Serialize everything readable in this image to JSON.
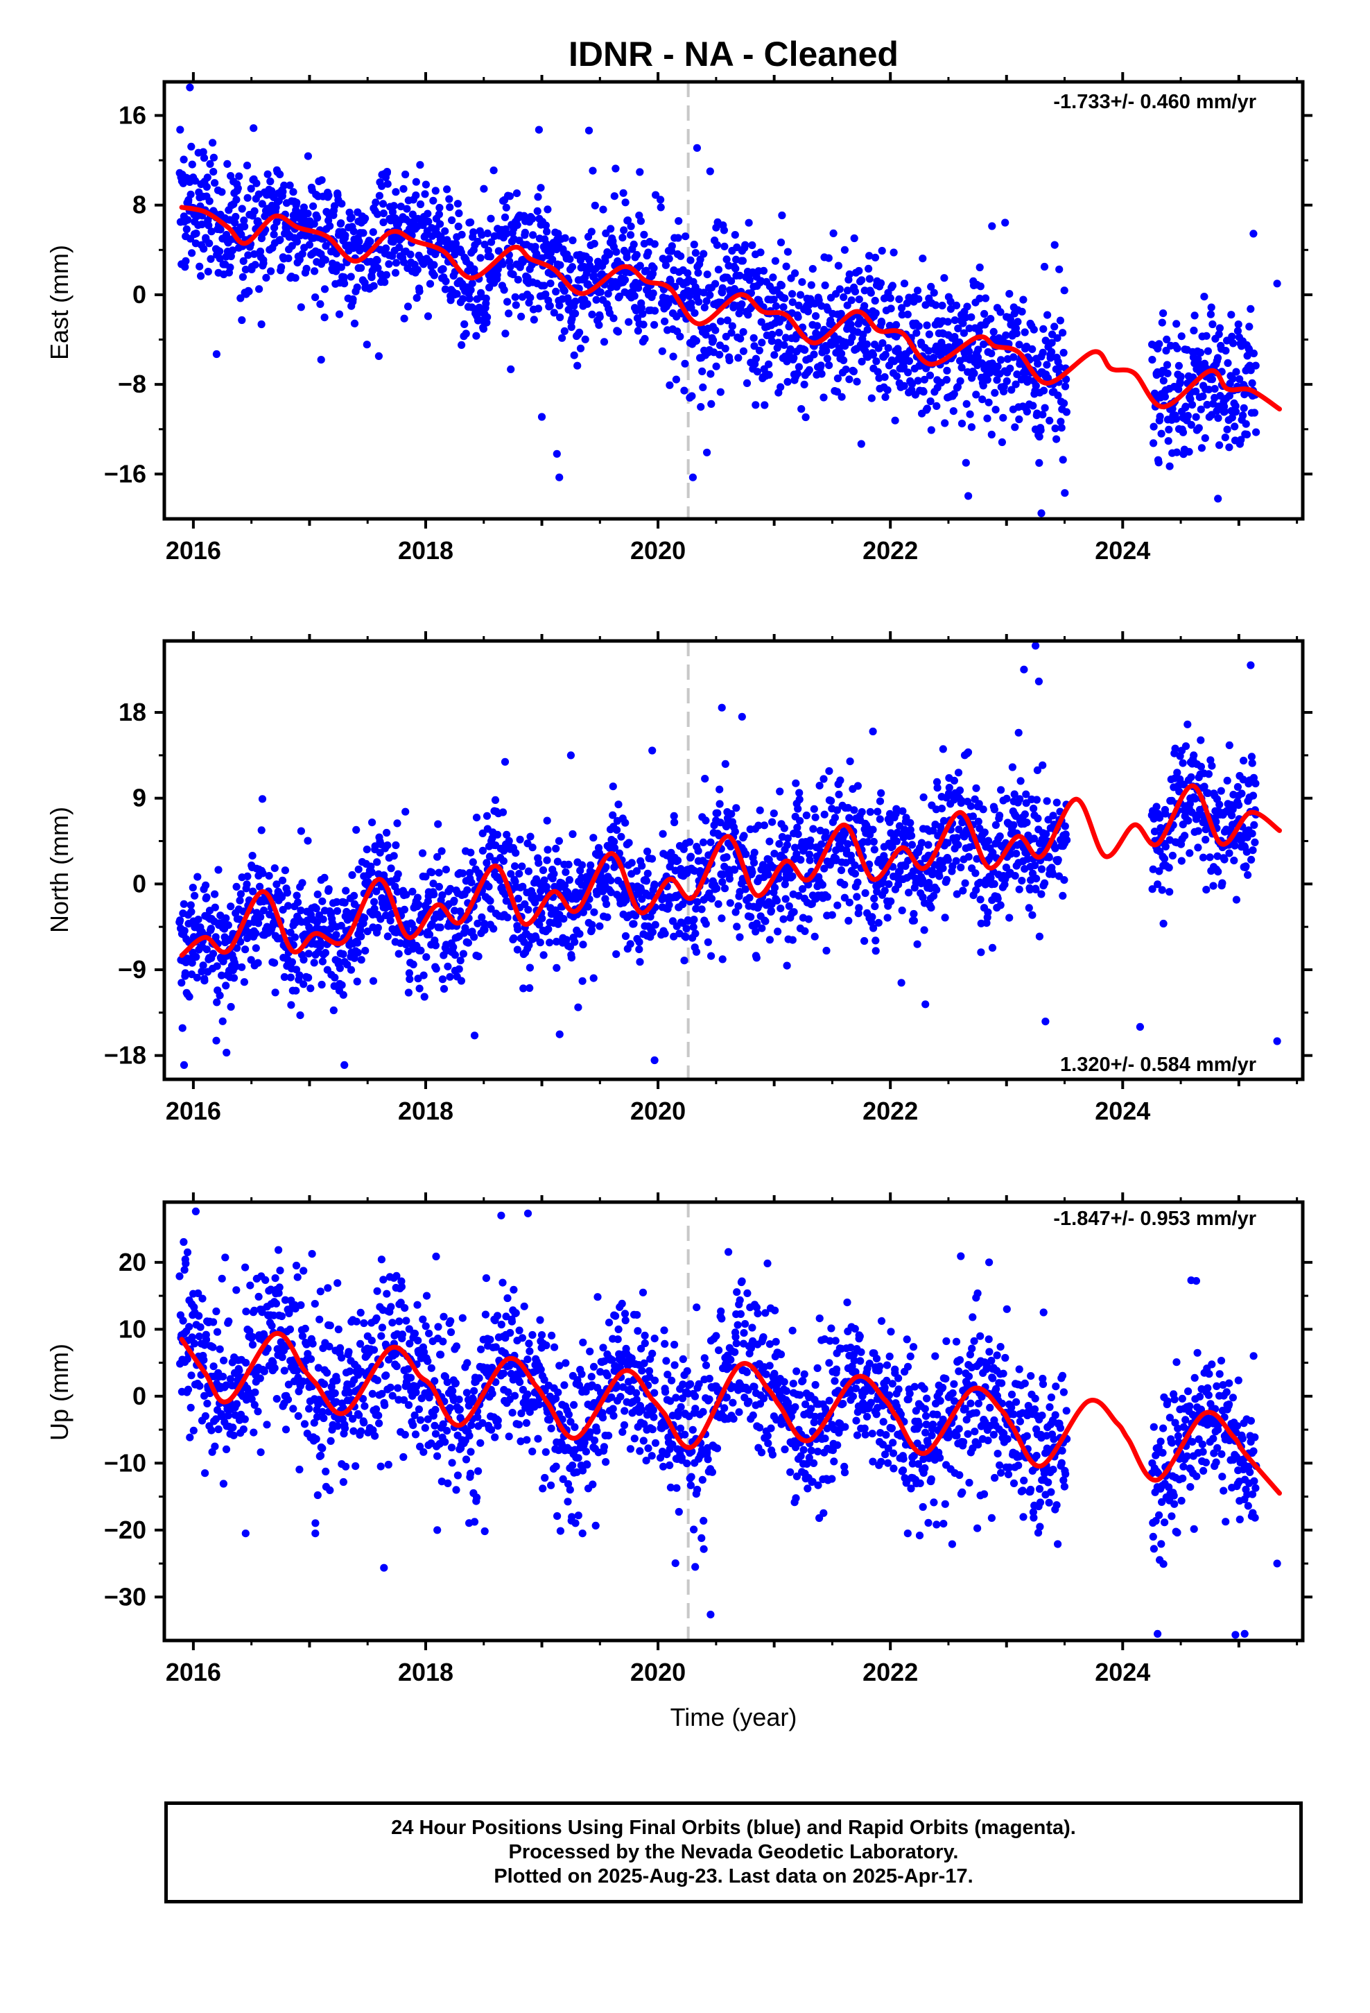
{
  "title": "IDNR  - NA - Cleaned",
  "colors": {
    "points": "#0000ff",
    "fit": "#ff0000",
    "event_line": "#c8c8c8",
    "axis": "#000000"
  },
  "chart_data": [
    {
      "type": "scatter",
      "name": "east",
      "ylabel": "East (mm)",
      "xlabel": "",
      "xlim": [
        2015.75,
        2025.55
      ],
      "ylim": [
        -20,
        19
      ],
      "yticks": [
        -16,
        -8,
        0,
        8,
        16
      ],
      "xticks": [
        2016,
        2018,
        2020,
        2022,
        2024
      ],
      "velocity": "-1.733+/- 0.460 mm/yr",
      "velocity_position": "top-right",
      "event_line_x": 2020.26,
      "fit": {
        "x": [
          2015.9,
          2016.1,
          2016.3,
          2016.45,
          2016.7,
          2016.9,
          2017.15,
          2017.4,
          2017.7,
          2017.9,
          2018.15,
          2018.4,
          2018.75,
          2018.9,
          2019.1,
          2019.35,
          2019.7,
          2019.9,
          2020.1,
          2020.35,
          2020.7,
          2020.9,
          2021.1,
          2021.35,
          2021.7,
          2021.9,
          2022.1,
          2022.35,
          2022.75,
          2022.9,
          2023.1,
          2023.35,
          2023.75,
          2023.9,
          2024.1,
          2024.35,
          2024.75,
          2024.9,
          2025.1,
          2025.35
        ],
        "y": [
          7.8,
          7.4,
          6.0,
          4.6,
          7.0,
          6.0,
          5.2,
          3.0,
          5.6,
          4.8,
          3.9,
          1.5,
          4.2,
          3.2,
          2.3,
          0.1,
          2.5,
          1.2,
          0.6,
          -2.6,
          0.0,
          -1.5,
          -1.8,
          -4.3,
          -1.5,
          -3.2,
          -3.4,
          -6.2,
          -3.8,
          -4.6,
          -5.1,
          -7.9,
          -5.1,
          -6.6,
          -7.0,
          -10.0,
          -6.8,
          -8.4,
          -8.5,
          -10.2
        ]
      },
      "points": {
        "segments": [
          [
            2015.88,
            2019.98,
            2.8
          ],
          [
            2020.02,
            2023.52,
            3.2
          ],
          [
            2024.25,
            2025.15,
            3.0
          ]
        ],
        "outliers": [
          [
            2015.97,
            18.5
          ],
          [
            2019.13,
            -14.2
          ],
          [
            2019.15,
            -16.3
          ],
          [
            2020.3,
            -16.3
          ],
          [
            2023.3,
            -19.5
          ],
          [
            2024.82,
            -18.2
          ],
          [
            2025.33,
            1.0
          ],
          [
            2016.2,
            -5.3
          ],
          [
            2017.1,
            -5.8
          ],
          [
            2019.0,
            -10.9
          ]
        ]
      }
    },
    {
      "type": "scatter",
      "name": "north",
      "ylabel": "North (mm)",
      "xlabel": "",
      "xlim": [
        2015.75,
        2025.55
      ],
      "ylim": [
        -20.5,
        25.5
      ],
      "yticks": [
        -18,
        -9,
        0,
        9,
        18
      ],
      "xticks": [
        2016,
        2018,
        2020,
        2022,
        2024
      ],
      "velocity": "1.320+/- 0.584 mm/yr",
      "velocity_position": "bottom-right",
      "event_line_x": 2020.26,
      "fit": {
        "x": [
          2015.9,
          2016.1,
          2016.3,
          2016.6,
          2016.85,
          2017.05,
          2017.3,
          2017.6,
          2017.85,
          2018.1,
          2018.3,
          2018.6,
          2018.85,
          2019.1,
          2019.3,
          2019.6,
          2019.85,
          2020.1,
          2020.3,
          2020.6,
          2020.85,
          2021.1,
          2021.3,
          2021.6,
          2021.85,
          2022.1,
          2022.3,
          2022.6,
          2022.85,
          2023.1,
          2023.3,
          2023.6,
          2023.85,
          2024.1,
          2024.3,
          2024.6,
          2024.85,
          2025.1,
          2025.35
        ],
        "y": [
          -7.5,
          -5.6,
          -7.0,
          -0.8,
          -7.0,
          -5.2,
          -6.0,
          0.5,
          -5.6,
          -2.2,
          -4.0,
          1.9,
          -4.2,
          -0.8,
          -2.8,
          3.2,
          -3.0,
          0.5,
          -1.4,
          5.0,
          -1.2,
          2.4,
          0.5,
          6.2,
          0.5,
          3.8,
          1.7,
          7.5,
          1.7,
          5.0,
          2.9,
          8.9,
          2.9,
          6.2,
          4.2,
          10.3,
          4.2,
          7.5,
          5.6
        ]
      },
      "points": {
        "segments": [
          [
            2015.88,
            2019.98,
            3.2
          ],
          [
            2020.02,
            2022.45,
            3.6
          ],
          [
            2022.45,
            2023.35,
            3.4
          ],
          [
            2023.35,
            2023.52,
            3.4
          ],
          [
            2024.25,
            2025.15,
            3.2
          ]
        ],
        "outliers": [
          [
            2015.92,
            -19.0
          ],
          [
            2017.3,
            -19.0
          ],
          [
            2019.97,
            -18.5
          ],
          [
            2019.25,
            13.5
          ],
          [
            2018.6,
            8.8
          ],
          [
            2019.95,
            14.0
          ],
          [
            2024.15,
            -15.0
          ],
          [
            2025.33,
            -16.5
          ],
          [
            2023.15,
            22.5
          ],
          [
            2023.25,
            25.0
          ],
          [
            2020.55,
            18.5
          ],
          [
            2021.85,
            16.0
          ]
        ]
      }
    },
    {
      "type": "scatter",
      "name": "up",
      "ylabel": "Up (mm)",
      "xlabel": "Time (year)",
      "xlim": [
        2015.75,
        2025.55
      ],
      "ylim": [
        -36.5,
        29
      ],
      "yticks": [
        -30,
        -20,
        -10,
        0,
        10,
        20
      ],
      "xticks": [
        2016,
        2018,
        2020,
        2022,
        2024
      ],
      "velocity": "-1.847+/- 0.953 mm/yr",
      "velocity_position": "top-right",
      "event_line_x": 2020.26,
      "fit": {
        "x": [
          2015.9,
          2016.1,
          2016.3,
          2016.7,
          2016.95,
          2017.05,
          2017.3,
          2017.7,
          2017.95,
          2018.05,
          2018.3,
          2018.7,
          2018.95,
          2019.05,
          2019.3,
          2019.7,
          2019.95,
          2020.05,
          2020.3,
          2020.7,
          2020.95,
          2021.05,
          2021.3,
          2021.7,
          2021.95,
          2022.05,
          2022.3,
          2022.7,
          2022.95,
          2023.05,
          2023.3,
          2023.7,
          2023.95,
          2024.05,
          2024.3,
          2024.7,
          2024.95,
          2025.05,
          2025.35
        ],
        "y": [
          8.5,
          3.5,
          -0.7,
          9.3,
          4.0,
          2.0,
          -2.5,
          7.2,
          3.0,
          1.5,
          -4.3,
          5.5,
          1.5,
          -1.0,
          -6.2,
          3.7,
          -0.5,
          -2.5,
          -7.5,
          4.6,
          1.0,
          -1.5,
          -6.6,
          2.8,
          -0.5,
          -3.0,
          -8.5,
          1.0,
          -2.0,
          -4.5,
          -10.4,
          -0.8,
          -4.0,
          -6.5,
          -12.5,
          -2.6,
          -6.0,
          -8.5,
          -14.5
        ]
      },
      "points": {
        "segments": [
          [
            2015.88,
            2019.98,
            6.0
          ],
          [
            2020.02,
            2023.52,
            5.8
          ],
          [
            2024.25,
            2025.15,
            5.6
          ]
        ],
        "outliers": [
          [
            2018.65,
            27.0
          ],
          [
            2016.45,
            -20.5
          ],
          [
            2017.05,
            -20.5
          ],
          [
            2018.1,
            -20.0
          ],
          [
            2019.35,
            -20.5
          ],
          [
            2020.32,
            -25.5
          ],
          [
            2022.15,
            -20.5
          ],
          [
            2024.3,
            -35.5
          ],
          [
            2025.05,
            -35.5
          ],
          [
            2025.33,
            -25.0
          ],
          [
            2022.85,
            20.0
          ],
          [
            2015.95,
            21.5
          ]
        ]
      }
    }
  ],
  "footer": {
    "line1": "24 Hour Positions Using Final Orbits (blue) and Rapid Orbits (magenta).",
    "line2": "Processed by the Nevada Geodetic Laboratory.",
    "line3": "Plotted on 2025-Aug-23. Last data on 2025-Apr-17."
  }
}
